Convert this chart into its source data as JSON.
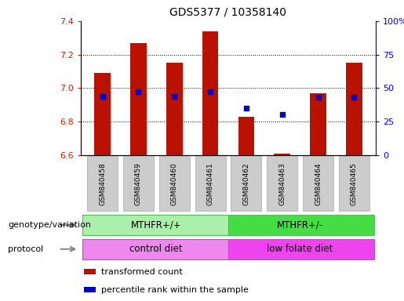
{
  "title": "GDS5377 / 10358140",
  "samples": [
    "GSM840458",
    "GSM840459",
    "GSM840460",
    "GSM840461",
    "GSM840462",
    "GSM840463",
    "GSM840464",
    "GSM840465"
  ],
  "bar_tops": [
    7.09,
    7.27,
    7.15,
    7.34,
    6.83,
    6.61,
    6.97,
    7.15
  ],
  "bar_bottom": 6.6,
  "percentile_ranks": [
    44,
    47,
    44,
    47,
    35,
    30,
    43,
    43
  ],
  "ylim_left": [
    6.6,
    7.4
  ],
  "ylim_right": [
    0,
    100
  ],
  "yticks_left": [
    6.6,
    6.8,
    7.0,
    7.2,
    7.4
  ],
  "yticks_right": [
    0,
    25,
    50,
    75,
    100
  ],
  "bar_color": "#bb1100",
  "dot_color": "#0000cc",
  "title_fontsize": 10,
  "genotype1_color": "#aaf0aa",
  "genotype2_color": "#44dd44",
  "protocol1_color": "#ee88ee",
  "protocol2_color": "#ee44ee",
  "legend_red_label": "transformed count",
  "legend_blue_label": "percentile rank within the sample",
  "left_label_genotype": "genotype/variation",
  "left_label_protocol": "protocol",
  "tick_bg_color": "#cccccc",
  "tick_bg_edge": "#aaaaaa"
}
